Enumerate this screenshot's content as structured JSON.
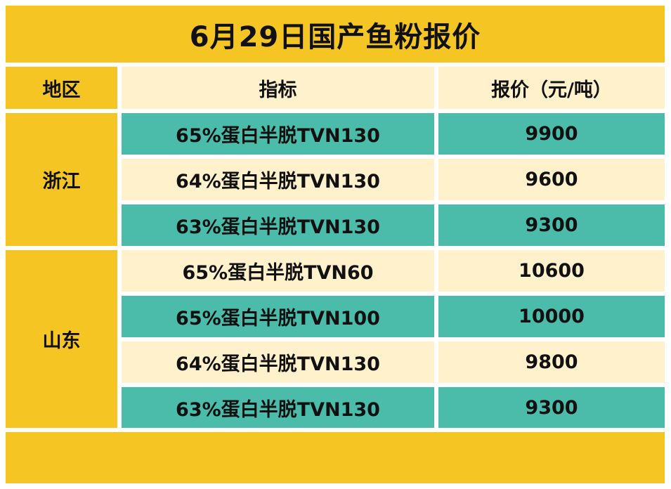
{
  "title": "6月29日国产鱼粉报价",
  "headers": {
    "region": "地区",
    "indicator": "指标",
    "price": "报价（元/吨）"
  },
  "regions": [
    {
      "name": "浙江",
      "rows": [
        {
          "spec": "65%蛋白半脱TVN130",
          "price": "9900"
        },
        {
          "spec": "64%蛋白半脱TVN130",
          "price": "9600"
        },
        {
          "spec": "63%蛋白半脱TVN130",
          "price": "9300"
        }
      ]
    },
    {
      "name": "山东",
      "rows": [
        {
          "spec": "65%蛋白半脱TVN60",
          "price": "10600"
        },
        {
          "spec": "65%蛋白半脱TVN100",
          "price": "10000"
        },
        {
          "spec": "64%蛋白半脱TVN130",
          "price": "9800"
        },
        {
          "spec": "63%蛋白半脱TVN130",
          "price": "9300"
        }
      ]
    }
  ],
  "colors": {
    "yellow": "#f5c623",
    "cream": "#fff1cc",
    "teal": "#4bbcaa"
  }
}
